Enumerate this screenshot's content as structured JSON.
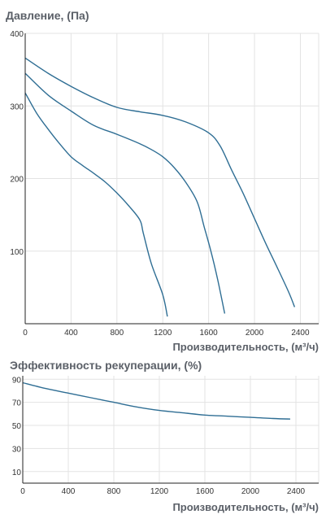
{
  "chart_data": [
    {
      "type": "line",
      "title": "Давление, (Па)",
      "xlabel": "Производительность, (м³/ч)",
      "ylabel": "",
      "xlim": [
        0,
        2560
      ],
      "ylim": [
        0,
        400
      ],
      "xticks": [
        0,
        400,
        800,
        1200,
        1600,
        2000,
        2400
      ],
      "yticks": [
        100,
        200,
        300,
        400
      ],
      "grid": true,
      "series": [
        {
          "x": [
            0,
            100,
            200,
            300,
            400,
            500,
            600,
            700,
            800,
            900,
            1000,
            1030,
            1100,
            1200,
            1240
          ],
          "y": [
            318,
            290,
            268,
            248,
            230,
            218,
            207,
            195,
            180,
            163,
            143,
            125,
            83,
            40,
            10
          ]
        },
        {
          "x": [
            0,
            200,
            400,
            600,
            800,
            1000,
            1100,
            1200,
            1300,
            1400,
            1500,
            1560,
            1620,
            1680,
            1740
          ],
          "y": [
            345,
            315,
            293,
            273,
            261,
            248,
            240,
            230,
            215,
            195,
            168,
            134,
            100,
            60,
            14
          ]
        },
        {
          "x": [
            0,
            200,
            400,
            600,
            800,
            1000,
            1200,
            1400,
            1600,
            1700,
            1800,
            1900,
            2000,
            2100,
            2200,
            2300,
            2350
          ],
          "y": [
            366,
            345,
            327,
            311,
            298,
            292,
            287,
            278,
            263,
            245,
            212,
            180,
            145,
            110,
            77,
            43,
            23
          ]
        }
      ]
    },
    {
      "type": "line",
      "title": "Эффективность рекуперации, (%)",
      "xlabel": "Производительность, (м³/ч)",
      "ylabel": "",
      "xlim": [
        0,
        2600
      ],
      "ylim": [
        0,
        93
      ],
      "xticks": [
        0,
        400,
        800,
        1200,
        1600,
        2000,
        2400
      ],
      "yticks": [
        10,
        30,
        50,
        70,
        90
      ],
      "grid": true,
      "series": [
        {
          "x": [
            0,
            200,
            400,
            600,
            800,
            1000,
            1200,
            1400,
            1600,
            1800,
            2000,
            2200,
            2350
          ],
          "y": [
            87,
            82,
            78,
            74,
            70,
            66,
            63,
            61,
            59,
            58,
            57,
            56,
            55.5
          ]
        }
      ]
    }
  ]
}
